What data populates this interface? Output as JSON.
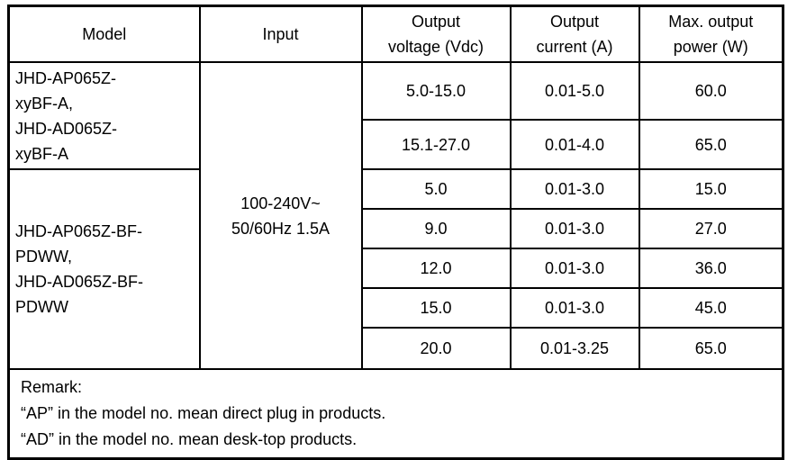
{
  "table": {
    "headers": [
      "Model",
      "Input",
      "Output\nvoltage (Vdc)",
      "Output\ncurrent (A)",
      "Max. output\npower (W)"
    ],
    "input": "100-240V~\n50/60Hz 1.5A",
    "model_groups": [
      {
        "model": "JHD-AP065Z-\nxyBF-A,\nJHD-AD065Z-\nxyBF-A"
      },
      {
        "model": "JHD-AP065Z-BF-\nPDWW,\nJHD-AD065Z-BF-\nPDWW"
      }
    ],
    "rows": [
      {
        "voltage": "5.0-15.0",
        "current": "0.01-5.0",
        "power": "60.0"
      },
      {
        "voltage": "15.1-27.0",
        "current": "0.01-4.0",
        "power": "65.0"
      },
      {
        "voltage": "5.0",
        "current": "0.01-3.0",
        "power": "15.0"
      },
      {
        "voltage": "9.0",
        "current": "0.01-3.0",
        "power": "27.0"
      },
      {
        "voltage": "12.0",
        "current": "0.01-3.0",
        "power": "36.0"
      },
      {
        "voltage": "15.0",
        "current": "0.01-3.0",
        "power": "45.0"
      },
      {
        "voltage": "20.0",
        "current": "0.01-3.25",
        "power": "65.0"
      }
    ],
    "remark": {
      "title": "Remark:",
      "lines": [
        "“AP” in the model no. mean direct plug in products.",
        "“AD” in the model no. mean desk-top products."
      ]
    },
    "colors": {
      "border": "#000000",
      "text": "#000000",
      "background": "#ffffff"
    }
  }
}
